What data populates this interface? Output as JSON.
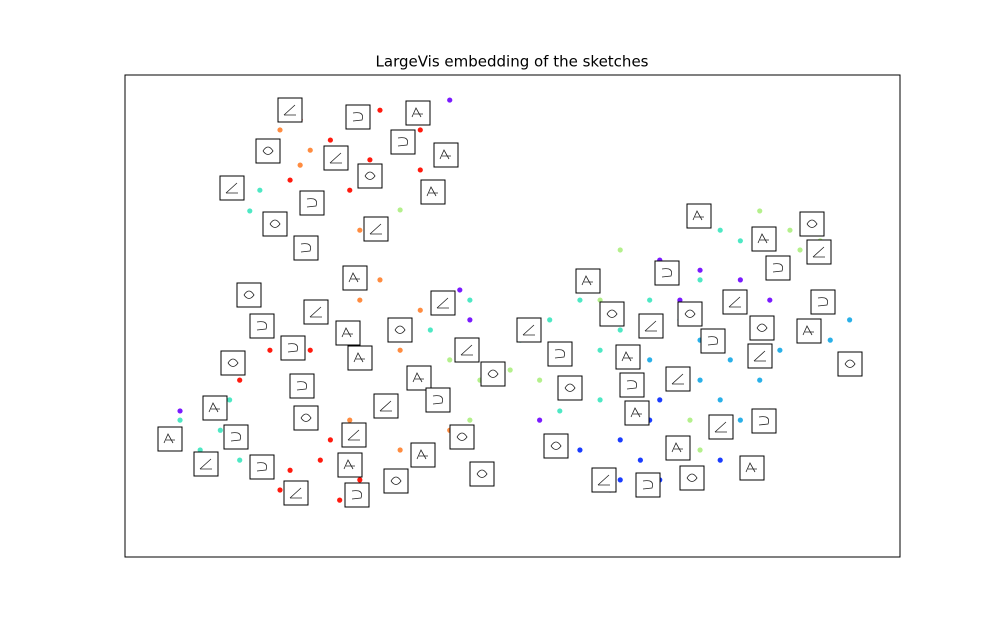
{
  "chart_data": {
    "type": "scatter",
    "title": "LargeVis embedding of the sketches",
    "xlim": [
      0,
      100
    ],
    "ylim": [
      0,
      100
    ],
    "series": [
      {
        "color": "#ff1a0e",
        "x": [
          32.9,
          35.5,
          26.5,
          21.3,
          29.0,
          22.6,
          38.1,
          16.1,
          18.7,
          14.8,
          22.6,
          25.2,
          20.0,
          27.7,
          22.6,
          17.4,
          26.5,
          21.3,
          30.3,
          23.9,
          38.1,
          31.6
        ],
        "values": [
          92.7,
          84.4,
          86.5,
          78.2,
          76.1,
          90.7,
          88.6,
          53.3,
          42.9,
          36.7,
          28.4,
          20.1,
          13.9,
          11.8,
          34.6,
          49.2,
          24.3,
          18.0,
          16.0,
          42.9,
          80.3,
          82.4
        ]
      },
      {
        "color": "#ff8c40",
        "x": [
          20.0,
          23.9,
          22.6,
          39.4,
          30.3,
          35.5,
          32.9,
          29.0,
          38.1,
          40.6,
          32.9,
          27.7,
          30.3,
          41.9,
          35.5
        ],
        "values": [
          88.6,
          84.4,
          81.3,
          74.1,
          53.3,
          42.9,
          57.5,
          28.4,
          51.2,
          34.6,
          32.6,
          47.1,
          67.8,
          26.3,
          22.2
        ]
      },
      {
        "color": "#b4f08c",
        "x": [
          32.9,
          35.5,
          41.9,
          45.8,
          49.7,
          53.5,
          56.1,
          61.3,
          63.9,
          87.1,
          85.8,
          89.7,
          81.9,
          74.2,
          72.9,
          44.5
        ],
        "values": [
          69.9,
          72.0,
          40.9,
          36.7,
          38.8,
          36.7,
          42.9,
          53.3,
          63.7,
          63.7,
          67.8,
          65.6,
          71.8,
          22.2,
          28.4,
          28.4
        ]
      },
      {
        "color": "#4ee8c4",
        "x": [
          13.5,
          17.4,
          16.1,
          19.4,
          7.1,
          5.8,
          9.7,
          12.3,
          14.8,
          11.0,
          13.5,
          51.0,
          54.8,
          58.7,
          61.3,
          63.9,
          66.5,
          61.3,
          56.1,
          67.7,
          76.8,
          79.4,
          74.2,
          39.4,
          44.5
        ],
        "values": [
          76.1,
          76.1,
          71.8,
          69.9,
          28.4,
          24.3,
          22.2,
          26.3,
          20.1,
          18.0,
          32.6,
          45.0,
          49.2,
          53.3,
          42.9,
          47.1,
          36.7,
          32.6,
          30.3,
          53.3,
          67.8,
          65.6,
          57.5,
          47.1,
          53.3
        ]
      },
      {
        "color": "#2ab0e8",
        "x": [
          71.6,
          74.2,
          78.1,
          81.9,
          84.5,
          87.1,
          91.0,
          93.5,
          89.7,
          76.8,
          79.4,
          74.2,
          83.2,
          67.7
        ],
        "values": [
          49.2,
          45.0,
          40.9,
          36.7,
          42.9,
          47.1,
          45.0,
          49.2,
          53.3,
          32.6,
          28.4,
          36.7,
          30.3,
          40.9
        ]
      },
      {
        "color": "#1a3cff",
        "x": [
          63.9,
          66.5,
          69.0,
          61.3,
          71.6,
          67.7,
          63.9,
          74.2,
          76.8,
          69.0,
          58.7,
          62.6
        ],
        "values": [
          24.3,
          20.1,
          16.0,
          18.0,
          24.3,
          28.4,
          16.0,
          18.0,
          20.1,
          32.6,
          22.2,
          13.9
        ]
      },
      {
        "color": "#7a1aff",
        "x": [
          69.0,
          74.2,
          79.4,
          83.2,
          71.6,
          43.2,
          44.5,
          53.5,
          56.1,
          41.9,
          22.6,
          7.1
        ],
        "values": [
          61.6,
          59.5,
          57.5,
          53.3,
          53.3,
          55.4,
          49.2,
          28.4,
          24.3,
          94.8,
          65.8,
          30.3
        ]
      }
    ]
  }
}
